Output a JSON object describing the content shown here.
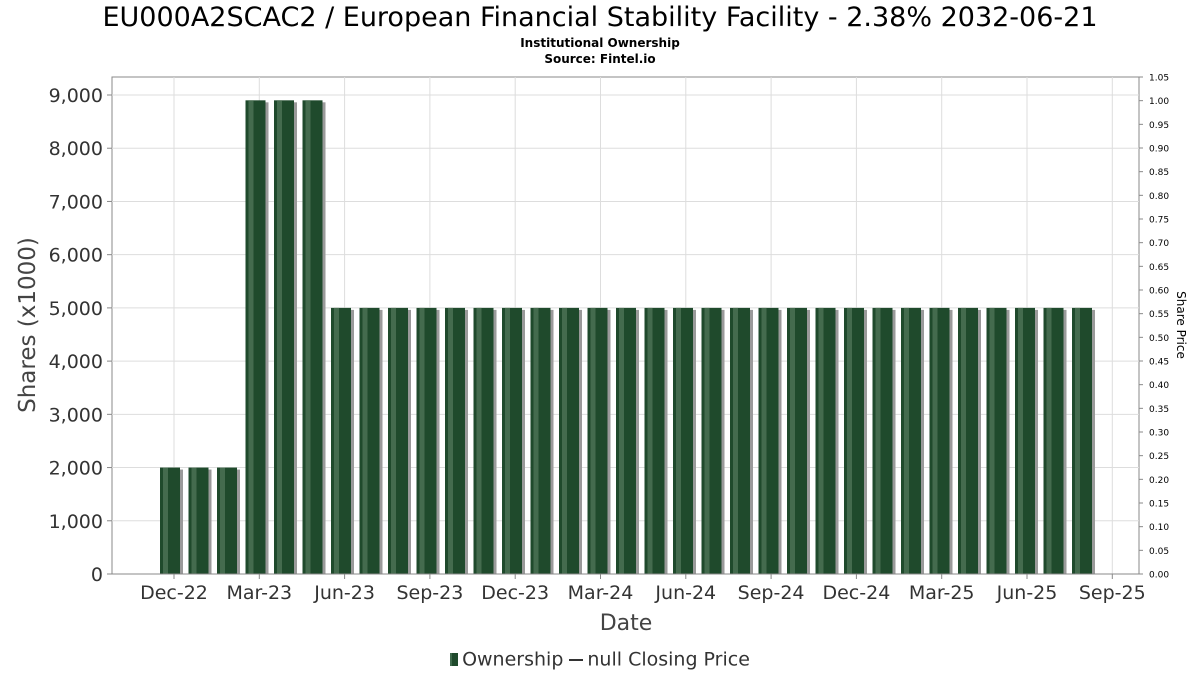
{
  "chart_data": {
    "type": "bar",
    "title": "EU000A2SCAC2 / European Financial Stability Facility - 2.38% 2032-06-21",
    "subtitle": "Institutional Ownership",
    "source": "Source: Fintel.io",
    "xlabel": "Date",
    "ylabel": "Shares (x1000)",
    "y2label": "Share Price",
    "ylim": [
      0,
      9000
    ],
    "y2lim": [
      0,
      1.05
    ],
    "yticks": [
      "0",
      "1,000",
      "2,000",
      "3,000",
      "4,000",
      "5,000",
      "6,000",
      "7,000",
      "8,000",
      "9,000"
    ],
    "y2ticks": [
      "0.00",
      "0.05",
      "0.10",
      "0.15",
      "0.20",
      "0.25",
      "0.30",
      "0.35",
      "0.40",
      "0.45",
      "0.50",
      "0.55",
      "0.60",
      "0.65",
      "0.70",
      "0.75",
      "0.80",
      "0.85",
      "0.90",
      "0.95",
      "1.00",
      "1.05"
    ],
    "xticks": [
      "Dec-22",
      "Mar-23",
      "Jun-23",
      "Sep-23",
      "Dec-23",
      "Mar-24",
      "Jun-24",
      "Sep-24",
      "Dec-24",
      "Mar-25",
      "Jun-25",
      "Sep-25"
    ],
    "grid": true,
    "legend_position": "bottom",
    "series": [
      {
        "name": "Ownership",
        "color": "#1f4a2c",
        "values": [
          2000,
          2000,
          2000,
          8900,
          8900,
          8900,
          5000,
          5000,
          5000,
          5000,
          5000,
          5000,
          5000,
          5000,
          5000,
          5000,
          5000,
          5000,
          5000,
          5000,
          5000,
          5000,
          5000,
          5000,
          5000,
          5000,
          5000,
          5000,
          5000,
          5000,
          5000,
          5000,
          5000
        ]
      },
      {
        "name": "null Closing Price",
        "color": "#333333",
        "values": []
      }
    ]
  }
}
